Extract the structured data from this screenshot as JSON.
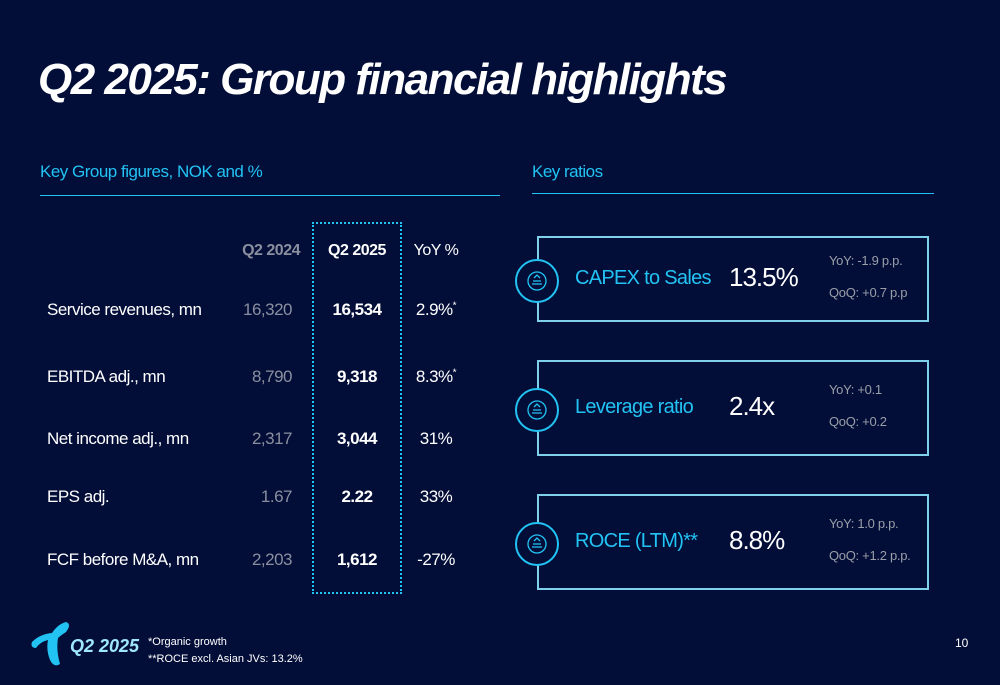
{
  "title": "Q2 2025:  Group financial highlights",
  "left_section": "Key Group figures, NOK and %",
  "right_section": "Key ratios",
  "table": {
    "headers": [
      "Q2 2024",
      "Q2 2025",
      "YoY %"
    ],
    "rows": [
      {
        "label": "Service revenues, mn",
        "q2_2024": "16,320",
        "q2_2025": "16,534",
        "yoy": "2.9%",
        "mark": "*"
      },
      {
        "label": "EBITDA adj., mn",
        "q2_2024": "8,790",
        "q2_2025": "9,318",
        "yoy": "8.3%",
        "mark": "*"
      },
      {
        "label": "Net income adj., mn",
        "q2_2024": "2,317",
        "q2_2025": "3,044",
        "yoy": "31%",
        "mark": ""
      },
      {
        "label": "EPS adj.",
        "q2_2024": "1.67",
        "q2_2025": "2.22",
        "yoy": "33%",
        "mark": ""
      },
      {
        "label": "FCF before M&A, mn",
        "q2_2024": "2,203",
        "q2_2025": "1,612",
        "yoy": "-27%",
        "mark": ""
      }
    ]
  },
  "ratios": [
    {
      "name": "CAPEX to Sales",
      "value": "13.5%",
      "yoy": "YoY: -1.9  p.p.",
      "qoq": "QoQ:  +0.7 p.p",
      "icon": "scale-icon"
    },
    {
      "name": "Leverage ratio",
      "value": "2.4x",
      "yoy": "YoY: +0.1",
      "qoq": "QoQ: +0.2",
      "icon": "pie-coins-icon"
    },
    {
      "name": "ROCE (LTM)**",
      "value": "8.8%",
      "yoy": "YoY:  1.0 p.p.",
      "qoq": "QoQ:  +1.2 p.p.",
      "icon": "coins-cycle-icon"
    }
  ],
  "footer": {
    "logo_text": "Q2 2025",
    "note1": "*Organic growth",
    "note2": "**ROCE excl. Asian JVs: 13.2%",
    "page": "10"
  },
  "colors": {
    "background": "#030e38",
    "accent": "#22c3f3"
  }
}
